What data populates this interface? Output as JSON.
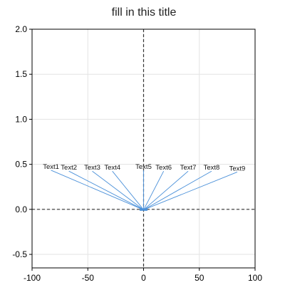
{
  "chart_data": {
    "type": "line",
    "title": "fill in this title",
    "xlabel": "",
    "ylabel": "",
    "xlim": [
      -100,
      100
    ],
    "ylim": [
      -0.65,
      2.0
    ],
    "x_ticks": [
      -100,
      -50,
      0,
      50,
      100
    ],
    "x_tick_labels": [
      "-100",
      "-50",
      "0",
      "50",
      "100"
    ],
    "y_ticks": [
      -0.5,
      0.0,
      0.5,
      1.0,
      1.5,
      2.0
    ],
    "y_tick_labels": [
      "-0.5",
      "0.0",
      "0.5",
      "1.0",
      "1.5",
      "2.0"
    ],
    "grid": true,
    "reference_lines": [
      {
        "orientation": "vertical",
        "value": 0,
        "style": "dashed"
      },
      {
        "orientation": "horizontal",
        "value": 0,
        "style": "dashed"
      }
    ],
    "annotations": [
      {
        "text": "Text1",
        "label_x": -83,
        "label_y": 0.45,
        "point_x": -1,
        "point_y": 0.0
      },
      {
        "text": "Text2",
        "label_x": -67,
        "label_y": 0.44,
        "point_x": -0.75,
        "point_y": 0.0
      },
      {
        "text": "Text3",
        "label_x": -46,
        "label_y": 0.44,
        "point_x": -0.5,
        "point_y": 0.0
      },
      {
        "text": "Text4",
        "label_x": -28,
        "label_y": 0.44,
        "point_x": -0.25,
        "point_y": 0.0
      },
      {
        "text": "Text5",
        "label_x": 0,
        "label_y": 0.45,
        "point_x": 0,
        "point_y": 0.0
      },
      {
        "text": "Text6",
        "label_x": 18,
        "label_y": 0.44,
        "point_x": 0.25,
        "point_y": 0.0
      },
      {
        "text": "Text7",
        "label_x": 40,
        "label_y": 0.44,
        "point_x": 0.5,
        "point_y": 0.0
      },
      {
        "text": "Text8",
        "label_x": 61,
        "label_y": 0.44,
        "point_x": 0.75,
        "point_y": 0.0
      },
      {
        "text": "Text9",
        "label_x": 84,
        "label_y": 0.43,
        "point_x": 1,
        "point_y": 0.0
      }
    ],
    "colors": {
      "connector": "#4a90d9",
      "grid": "#e3e3e3",
      "axis": "#000000",
      "reference": "#333333"
    }
  }
}
